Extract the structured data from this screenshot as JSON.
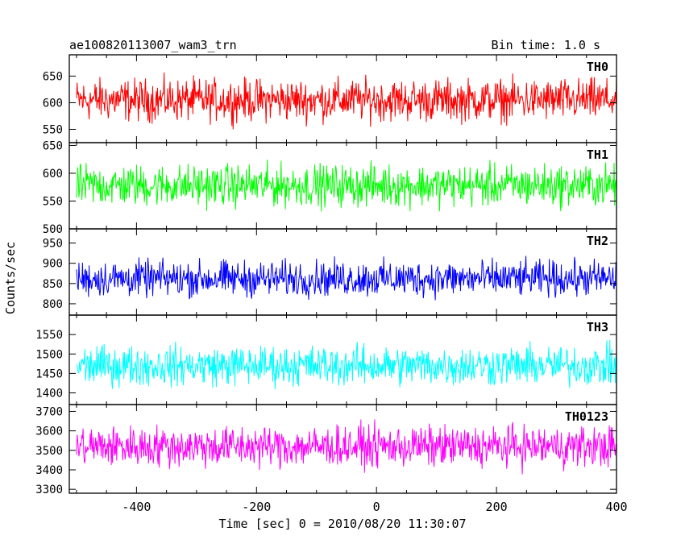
{
  "header": {
    "title": "ae100820113007_wam3_trn",
    "bin_time": "Bin time: 1.0 s"
  },
  "ylabel": "Counts/sec",
  "xlabel": "Time [sec] 0 = 2010/08/20 11:30:07",
  "chart_data": {
    "type": "line",
    "title": "ae100820113007_wam3_trn",
    "subtitle": "Bin time: 1.0 s",
    "xlabel": "Time [sec] 0 = 2010/08/20 11:30:07",
    "ylabel": "Counts/sec",
    "xlim": [
      -512,
      400
    ],
    "x_ticks": [
      -400,
      -200,
      0,
      200,
      400
    ],
    "x_data_range": [
      -500,
      400
    ],
    "grid": false,
    "series": [
      {
        "name": "TH0",
        "color": "#ff0000",
        "ylim": [
          525,
          690
        ],
        "y_ticks": [
          550,
          600,
          650
        ],
        "mean": 605,
        "spread": 58
      },
      {
        "name": "TH1",
        "color": "#00ff00",
        "ylim": [
          500,
          655
        ],
        "y_ticks": [
          500,
          550,
          600,
          650
        ],
        "mean": 578,
        "spread": 55
      },
      {
        "name": "TH2",
        "color": "#0000ff",
        "ylim": [
          772,
          985
        ],
        "y_ticks": [
          800,
          850,
          900,
          950
        ],
        "mean": 862,
        "spread": 65
      },
      {
        "name": "TH3",
        "color": "#00ffff",
        "ylim": [
          1370,
          1600
        ],
        "y_ticks": [
          1400,
          1450,
          1500,
          1550
        ],
        "mean": 1470,
        "spread": 75
      },
      {
        "name": "TH0123",
        "color": "#ff00ff",
        "ylim": [
          3280,
          3735
        ],
        "y_ticks": [
          3300,
          3400,
          3500,
          3600,
          3700
        ],
        "mean": 3520,
        "spread": 155
      }
    ]
  }
}
